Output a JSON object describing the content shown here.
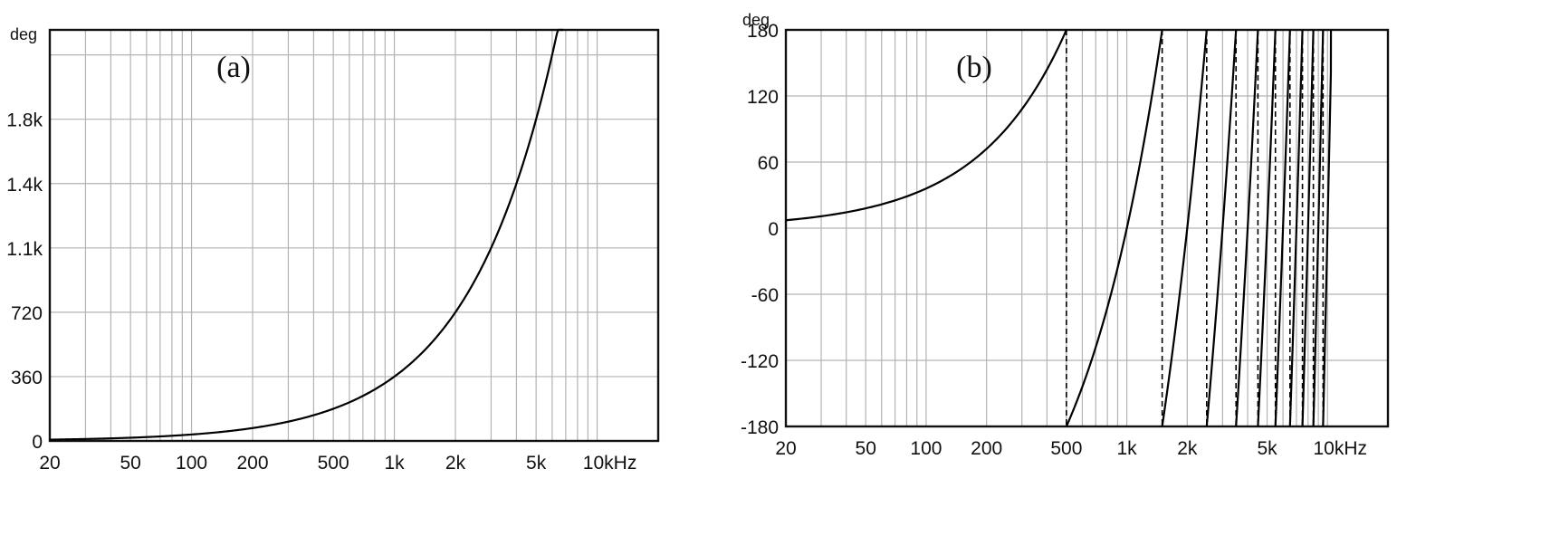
{
  "chart_data": [
    {
      "type": "line",
      "panel_label": "(a)",
      "ylabel": "deg",
      "xscale": "log",
      "xlim": [
        20,
        20000
      ],
      "ylim": [
        0,
        2300
      ],
      "grid": true,
      "x_tick_values": [
        20,
        50,
        100,
        200,
        500,
        1000,
        2000,
        5000,
        10000
      ],
      "x_tick_labels": [
        "20",
        "50",
        "100",
        "200",
        "500",
        "1k",
        "2k",
        "5k",
        "10kHz"
      ],
      "y_tick_values": [
        0,
        360,
        720,
        1080,
        1440,
        1800
      ],
      "y_tick_labels": [
        "0",
        "360",
        "720",
        "1.1k",
        "1.4k",
        "1.8k"
      ],
      "series": [
        {
          "x": [
            20,
            50,
            100,
            200,
            300,
            500,
            700,
            1000,
            1500,
            2000,
            2500,
            3000,
            3500,
            4000,
            5000,
            6000,
            6800
          ],
          "y": [
            7,
            18,
            36,
            72,
            108,
            180,
            252,
            360,
            540,
            720,
            900,
            1080,
            1260,
            1440,
            1800,
            2160,
            2300
          ]
        }
      ]
    },
    {
      "type": "line",
      "panel_label": "(b)",
      "ylabel": "deg",
      "xscale": "log",
      "xlim": [
        20,
        20000
      ],
      "ylim": [
        -180,
        180
      ],
      "grid": true,
      "x_tick_values": [
        20,
        50,
        100,
        200,
        500,
        1000,
        2000,
        5000,
        10000
      ],
      "x_tick_labels": [
        "20",
        "50",
        "100",
        "200",
        "500",
        "1k",
        "2k",
        "5k",
        "10kHz"
      ],
      "y_tick_values": [
        180,
        120,
        60,
        0,
        -60,
        -120,
        -180
      ],
      "y_tick_labels": [
        "180",
        "120",
        "60",
        "0",
        "-60",
        "-120",
        "-180"
      ],
      "phase_slope_deg_per_hz": 0.36,
      "wrap_frequencies_hz": [
        500,
        1500,
        2500,
        3500,
        4500,
        5500,
        6500,
        7500,
        8500,
        9500
      ]
    }
  ]
}
